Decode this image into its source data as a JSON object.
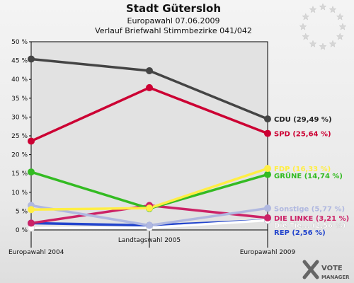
{
  "chart_data": {
    "type": "line",
    "title": "Stadt Gütersloh",
    "subtitle_1": "Europawahl 07.06.2009",
    "subtitle_2": "Verlauf Briefwahl Stimmbezirke 041/042",
    "x": [
      "Europawahl 2004",
      "Landtagswahl 2005",
      "Europawahl 2009"
    ],
    "ylim": [
      0,
      50
    ],
    "yticks": [
      "0 %",
      "5 %",
      "10 %",
      "15 %",
      "20 %",
      "25 %",
      "30 %",
      "35 %",
      "40 %",
      "45 %",
      "50 %"
    ],
    "grid": false,
    "series": [
      {
        "name": "CDU",
        "label": "CDU (29,49 %)",
        "values": [
          45.4,
          42.3,
          29.49
        ],
        "color": "#444444"
      },
      {
        "name": "SPD",
        "label": "SPD (25,64 %)",
        "values": [
          23.6,
          37.8,
          25.64
        ],
        "color": "#cc0033"
      },
      {
        "name": "FDP",
        "label": "FDP (16,33 %)",
        "values": [
          5.4,
          5.8,
          16.33
        ],
        "color": "#ffee44"
      },
      {
        "name": "GRÜNE",
        "label": "GRÜNE (14,74 %)",
        "values": [
          15.4,
          5.7,
          14.74
        ],
        "color": "#33bb22"
      },
      {
        "name": "Sonstige",
        "label": "Sonstige (5,77 %)",
        "values": [
          6.5,
          1.2,
          5.77
        ],
        "color": "#b0b8e0"
      },
      {
        "name": "DIE LINKE",
        "label": "DIE LINKE (3,21 %)",
        "values": [
          1.8,
          6.5,
          3.21
        ],
        "color": "#cc2266"
      },
      {
        "name": "Die Tierschutzpartei",
        "label": "Die Tie... (2,56 %)",
        "values": [
          0.5,
          0.6,
          2.56
        ],
        "color": "#ffffff"
      },
      {
        "name": "REP",
        "label": "REP (2,56 %)",
        "values": [
          1.8,
          1.2,
          2.56
        ],
        "color": "#2244cc"
      }
    ]
  },
  "logo": {
    "line1": "VOTE",
    "line2": "MANAGER"
  }
}
